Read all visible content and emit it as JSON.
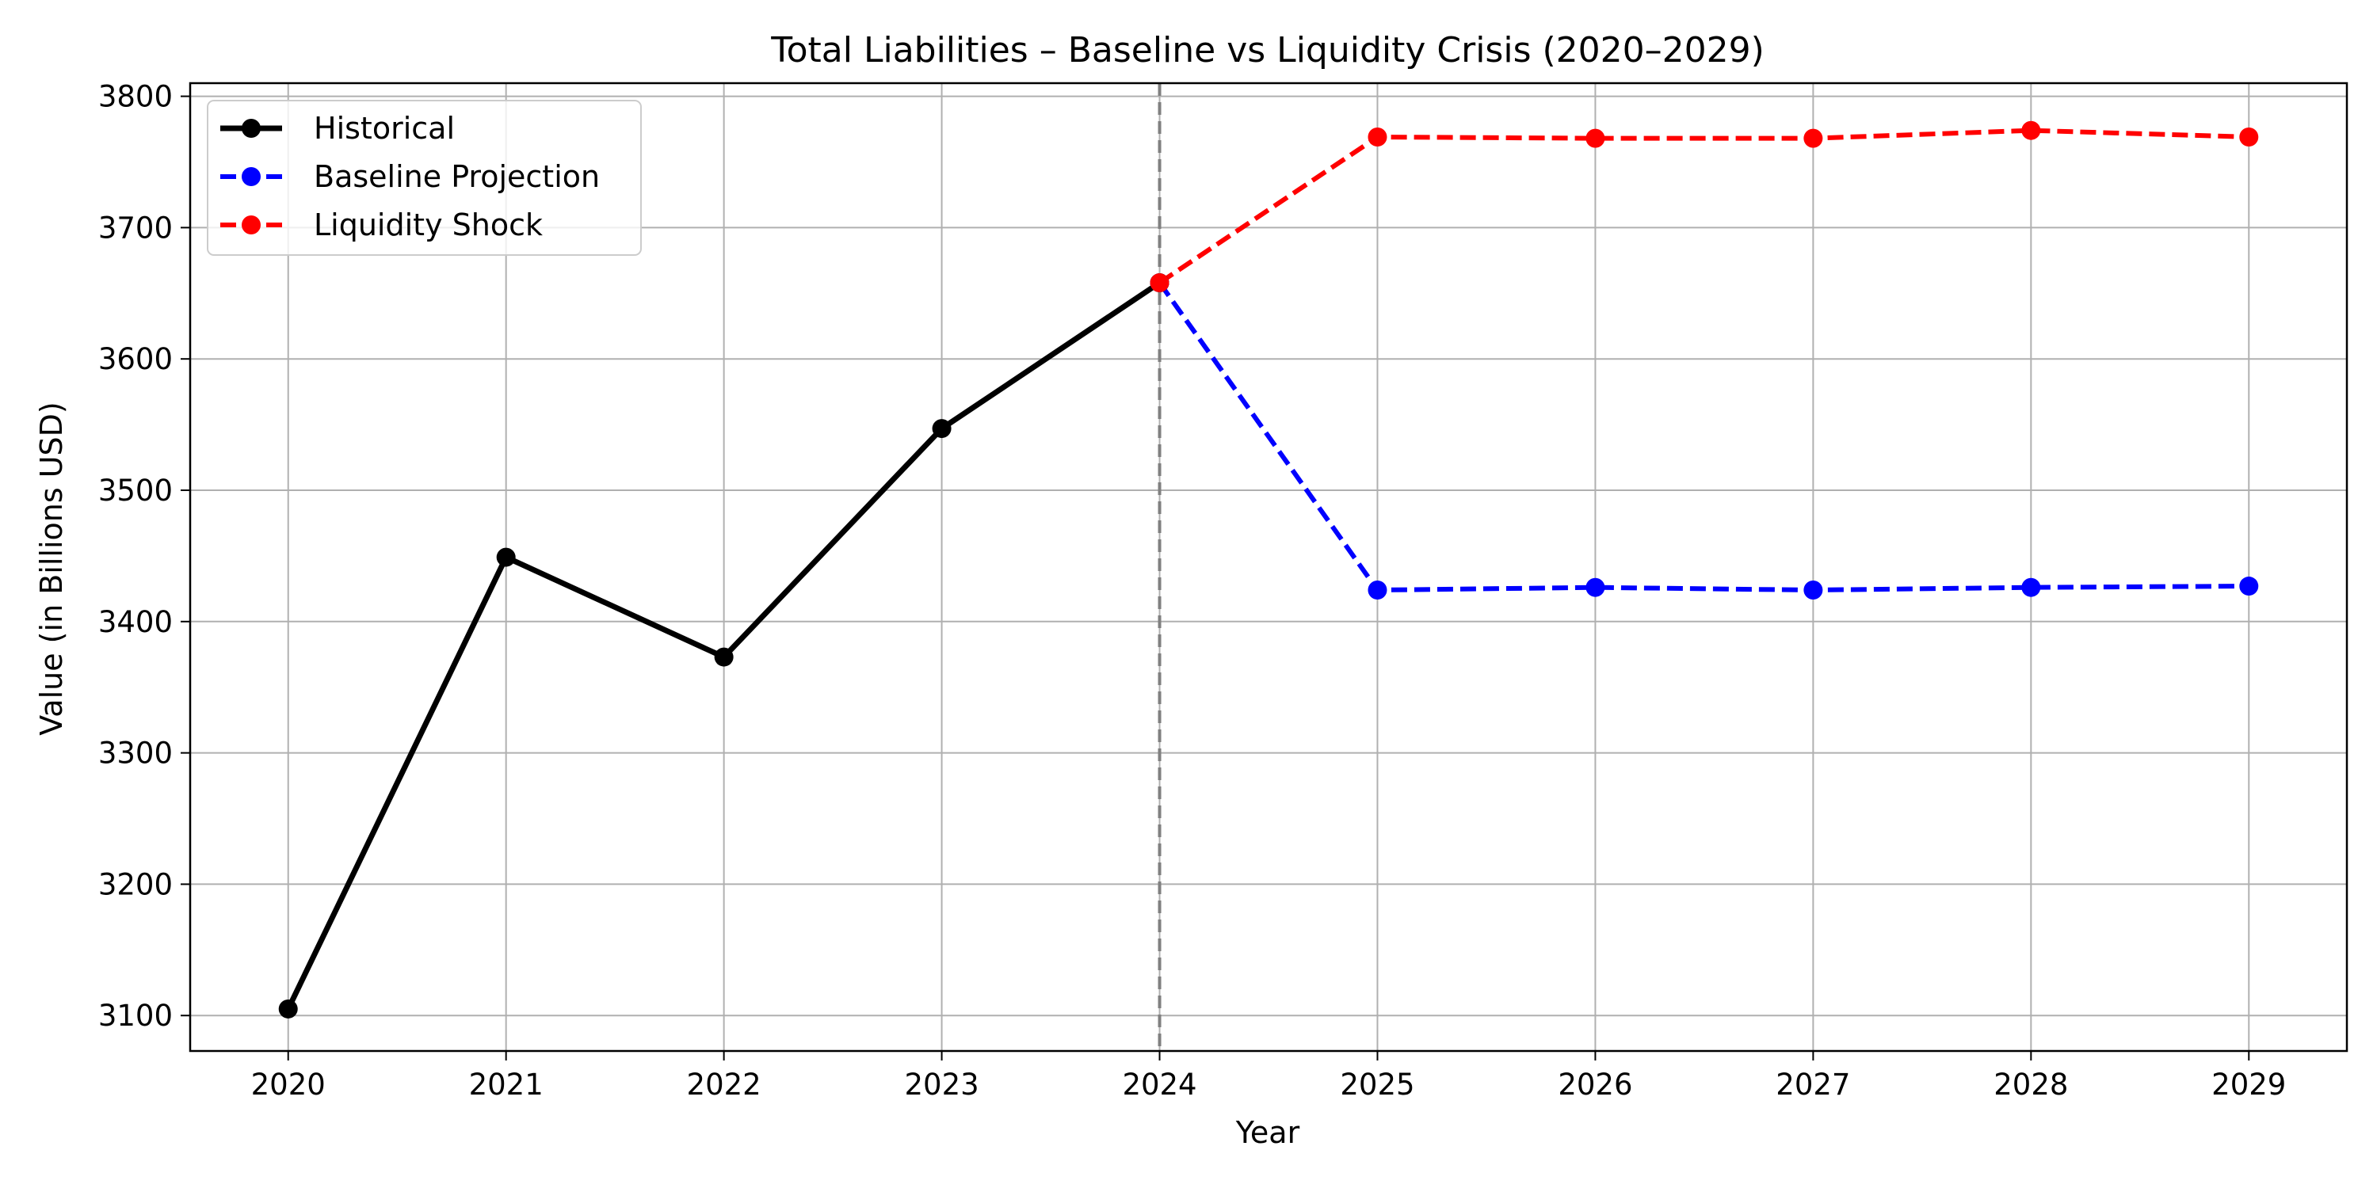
{
  "chart_data": {
    "type": "line",
    "title": "Total Liabilities – Baseline vs Liquidity Crisis (2020–2029)",
    "xlabel": "Year",
    "ylabel": "Value (in Billions USD)",
    "x_ticks": [
      "2020",
      "2021",
      "2022",
      "2023",
      "2024",
      "2025",
      "2026",
      "2027",
      "2028",
      "2029"
    ],
    "y_ticks": [
      "3100",
      "3200",
      "3300",
      "3400",
      "3500",
      "3600",
      "3700",
      "3800"
    ],
    "xlim": [
      2019.55,
      2029.45
    ],
    "ylim": [
      3073,
      3810
    ],
    "grid": true,
    "legend_placement": "top-left",
    "vline": {
      "x": 2024,
      "color": "#808080",
      "style": "dashed"
    },
    "series": [
      {
        "name": "Historical",
        "color": "#000000",
        "style": "solid",
        "x": [
          2020,
          2021,
          2022,
          2023,
          2024
        ],
        "values": [
          3105,
          3449,
          3373,
          3547,
          3658
        ]
      },
      {
        "name": "Baseline Projection",
        "color": "#0000ff",
        "style": "dashed",
        "x": [
          2024,
          2025,
          2026,
          2027,
          2028,
          2029
        ],
        "values": [
          3658,
          3424,
          3426,
          3424,
          3426,
          3427
        ]
      },
      {
        "name": "Liquidity Shock",
        "color": "#ff0000",
        "style": "dashed",
        "x": [
          2024,
          2025,
          2026,
          2027,
          2028,
          2029
        ],
        "values": [
          3658,
          3769,
          3768,
          3768,
          3774,
          3769
        ]
      }
    ]
  }
}
